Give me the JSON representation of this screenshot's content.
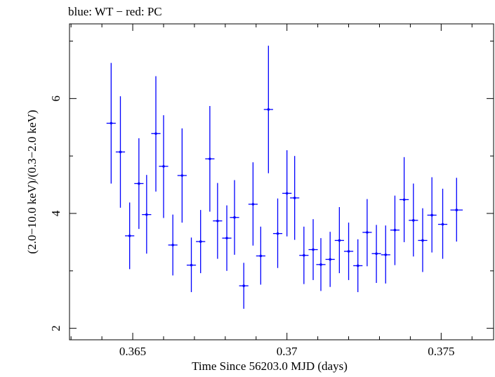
{
  "chart_data": {
    "type": "scatter",
    "title": "blue: WT − red: PC",
    "xlabel": "Time Since 56203.0 MJD (days)",
    "ylabel": "(2.0−10.0 keV)/(0.3−2.0 keV)",
    "xlim": [
      0.36295,
      0.3767
    ],
    "ylim": [
      1.8,
      7.3
    ],
    "x_ticks": [
      {
        "value": 0.365,
        "label": "0.365"
      },
      {
        "value": 0.37,
        "label": "0.37"
      },
      {
        "value": 0.375,
        "label": "0.375"
      }
    ],
    "x_minor_step": 0.001,
    "y_ticks": [
      {
        "value": 2,
        "label": "2"
      },
      {
        "value": 4,
        "label": "4"
      },
      {
        "value": 6,
        "label": "6"
      }
    ],
    "y_minor_step": 1,
    "grid": false,
    "series": [
      {
        "name": "WT",
        "color": "#0000ff",
        "points": [
          {
            "x": 0.3643,
            "y": 5.57,
            "xerr": 0.00015,
            "ylo": 4.52,
            "yhi": 6.62
          },
          {
            "x": 0.3646,
            "y": 5.07,
            "xerr": 0.00015,
            "ylo": 4.1,
            "yhi": 6.04
          },
          {
            "x": 0.3649,
            "y": 3.61,
            "xerr": 0.00015,
            "ylo": 3.03,
            "yhi": 4.19
          },
          {
            "x": 0.3652,
            "y": 4.52,
            "xerr": 0.00015,
            "ylo": 3.73,
            "yhi": 5.31
          },
          {
            "x": 0.36545,
            "y": 3.98,
            "xerr": 0.00015,
            "ylo": 3.3,
            "yhi": 4.67
          },
          {
            "x": 0.36575,
            "y": 5.39,
            "xerr": 0.00015,
            "ylo": 4.38,
            "yhi": 6.39
          },
          {
            "x": 0.366,
            "y": 4.82,
            "xerr": 0.00015,
            "ylo": 3.92,
            "yhi": 5.71
          },
          {
            "x": 0.3663,
            "y": 3.45,
            "xerr": 0.00015,
            "ylo": 2.92,
            "yhi": 3.98
          },
          {
            "x": 0.3666,
            "y": 4.66,
            "xerr": 0.00015,
            "ylo": 3.84,
            "yhi": 5.48
          },
          {
            "x": 0.3669,
            "y": 3.1,
            "xerr": 0.00015,
            "ylo": 2.63,
            "yhi": 3.58
          },
          {
            "x": 0.3672,
            "y": 3.51,
            "xerr": 0.00015,
            "ylo": 2.96,
            "yhi": 4.06
          },
          {
            "x": 0.3675,
            "y": 4.95,
            "xerr": 0.00015,
            "ylo": 4.03,
            "yhi": 5.87
          },
          {
            "x": 0.36775,
            "y": 3.87,
            "xerr": 0.00015,
            "ylo": 3.21,
            "yhi": 4.53
          },
          {
            "x": 0.36805,
            "y": 3.57,
            "xerr": 0.00015,
            "ylo": 3.0,
            "yhi": 4.14
          },
          {
            "x": 0.3683,
            "y": 3.93,
            "xerr": 0.00015,
            "ylo": 3.28,
            "yhi": 4.58
          },
          {
            "x": 0.3686,
            "y": 2.74,
            "xerr": 0.00015,
            "ylo": 2.34,
            "yhi": 3.14
          },
          {
            "x": 0.3689,
            "y": 4.16,
            "xerr": 0.00015,
            "ylo": 3.44,
            "yhi": 4.89
          },
          {
            "x": 0.36915,
            "y": 3.26,
            "xerr": 0.00015,
            "ylo": 2.76,
            "yhi": 3.77
          },
          {
            "x": 0.3694,
            "y": 5.81,
            "xerr": 0.00015,
            "ylo": 4.7,
            "yhi": 6.92
          },
          {
            "x": 0.3697,
            "y": 3.65,
            "xerr": 0.00015,
            "ylo": 3.05,
            "yhi": 4.26
          },
          {
            "x": 0.37,
            "y": 4.35,
            "xerr": 0.00015,
            "ylo": 3.6,
            "yhi": 5.1
          },
          {
            "x": 0.37025,
            "y": 4.27,
            "xerr": 0.00015,
            "ylo": 3.54,
            "yhi": 5.0
          },
          {
            "x": 0.37055,
            "y": 3.27,
            "xerr": 0.00015,
            "ylo": 2.77,
            "yhi": 3.77
          },
          {
            "x": 0.37085,
            "y": 3.37,
            "xerr": 0.00015,
            "ylo": 2.84,
            "yhi": 3.9
          },
          {
            "x": 0.3711,
            "y": 3.11,
            "xerr": 0.00015,
            "ylo": 2.65,
            "yhi": 3.57
          },
          {
            "x": 0.3714,
            "y": 3.2,
            "xerr": 0.00015,
            "ylo": 2.72,
            "yhi": 3.68
          },
          {
            "x": 0.3717,
            "y": 3.53,
            "xerr": 0.00015,
            "ylo": 2.96,
            "yhi": 4.11
          },
          {
            "x": 0.372,
            "y": 3.34,
            "xerr": 0.00015,
            "ylo": 2.84,
            "yhi": 3.84
          },
          {
            "x": 0.3723,
            "y": 3.09,
            "xerr": 0.00015,
            "ylo": 2.63,
            "yhi": 3.55
          },
          {
            "x": 0.3726,
            "y": 3.67,
            "xerr": 0.00015,
            "ylo": 3.08,
            "yhi": 4.25
          },
          {
            "x": 0.3729,
            "y": 3.3,
            "xerr": 0.00015,
            "ylo": 2.79,
            "yhi": 3.8
          },
          {
            "x": 0.3732,
            "y": 3.28,
            "xerr": 0.00015,
            "ylo": 2.78,
            "yhi": 3.79
          },
          {
            "x": 0.3735,
            "y": 3.71,
            "xerr": 0.00015,
            "ylo": 3.1,
            "yhi": 4.31
          },
          {
            "x": 0.3738,
            "y": 4.24,
            "xerr": 0.00015,
            "ylo": 3.5,
            "yhi": 4.98
          },
          {
            "x": 0.3741,
            "y": 3.88,
            "xerr": 0.00015,
            "ylo": 3.25,
            "yhi": 4.52
          },
          {
            "x": 0.3744,
            "y": 3.53,
            "xerr": 0.00015,
            "ylo": 2.98,
            "yhi": 4.09
          },
          {
            "x": 0.3747,
            "y": 3.97,
            "xerr": 0.00015,
            "ylo": 3.32,
            "yhi": 4.63
          },
          {
            "x": 0.37505,
            "y": 3.81,
            "xerr": 0.00015,
            "ylo": 3.21,
            "yhi": 4.43
          },
          {
            "x": 0.3755,
            "y": 4.06,
            "xerr": 0.0002,
            "ylo": 3.51,
            "yhi": 4.62
          }
        ]
      }
    ]
  }
}
